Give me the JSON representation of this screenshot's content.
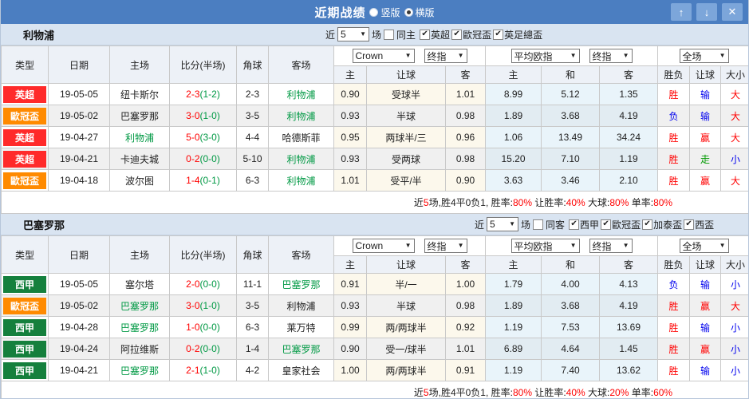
{
  "colors": {
    "red": "#ff0000",
    "blue": "#0000ee",
    "green": "#009944",
    "titlebar_blue": "#4b7ec1",
    "titlebar_button_blue": "#7ca6da",
    "section_header_bg": "#d9e4f1",
    "epl_badge": "#ff2a2a",
    "ucl_badge": "#ff8a00",
    "laliga_badge": "#15803d"
  },
  "league_colors": {
    "英超": "#ff2a2a",
    "歐冠盃": "#ff8a00",
    "西甲": "#15803d"
  },
  "titlebar": {
    "title": "近期战绩",
    "radio_vertical": "竖版",
    "radio_horizontal": "横版",
    "up_icon": "↑",
    "down_icon": "↓",
    "close_icon": "✕"
  },
  "header": {
    "col_type": "类型",
    "col_date": "日期",
    "col_home": "主场",
    "col_score": "比分(半场)",
    "col_corner": "角球",
    "col_away": "客场",
    "dd_crown": "Crown",
    "dd_final": "终指",
    "dd_euro": "平均欧指",
    "dd_final2": "终指",
    "dd_fulltime": "全场",
    "sub_crown_home": "主",
    "sub_crown_line": "让球",
    "sub_crown_away": "客",
    "sub_euro_home": "主",
    "sub_euro_draw": "和",
    "sub_euro_away": "客",
    "sub_result_wl": "胜负",
    "sub_result_line": "让球",
    "sub_result_ou": "大小"
  },
  "sections": [
    {
      "team": "利物浦",
      "near_label": "近",
      "near_value": "5",
      "games_label": "场",
      "same_label": "同主",
      "same_checked": false,
      "leagues": [
        "英超",
        "歐冠盃",
        "英足總盃"
      ],
      "rows": [
        {
          "league": "英超",
          "date": "19-05-05",
          "home": "纽卡斯尔",
          "home_highlight": false,
          "score_full": "2-3",
          "score_half": "(1-2)",
          "corner": "2-3",
          "away": "利物浦",
          "away_highlight": true,
          "crown": [
            "0.90",
            "受球半",
            "1.01"
          ],
          "euro": [
            "8.99",
            "5.12",
            "1.35"
          ],
          "results": [
            {
              "text": "胜",
              "color": "red"
            },
            {
              "text": "输",
              "color": "blue"
            },
            {
              "text": "大",
              "color": "red"
            }
          ]
        },
        {
          "league": "歐冠盃",
          "date": "19-05-02",
          "home": "巴塞罗那",
          "home_highlight": false,
          "score_full": "3-0",
          "score_half": "(1-0)",
          "corner": "3-5",
          "away": "利物浦",
          "away_highlight": true,
          "crown": [
            "0.93",
            "半球",
            "0.98"
          ],
          "euro": [
            "1.89",
            "3.68",
            "4.19"
          ],
          "results": [
            {
              "text": "负",
              "color": "blue"
            },
            {
              "text": "输",
              "color": "blue"
            },
            {
              "text": "大",
              "color": "red"
            }
          ]
        },
        {
          "league": "英超",
          "date": "19-04-27",
          "home": "利物浦",
          "home_highlight": true,
          "score_full": "5-0",
          "score_half": "(3-0)",
          "corner": "4-4",
          "away": "哈德斯菲",
          "away_highlight": false,
          "crown": [
            "0.95",
            "两球半/三",
            "0.96"
          ],
          "euro": [
            "1.06",
            "13.49",
            "34.24"
          ],
          "results": [
            {
              "text": "胜",
              "color": "red"
            },
            {
              "text": "赢",
              "color": "red"
            },
            {
              "text": "大",
              "color": "red"
            }
          ]
        },
        {
          "league": "英超",
          "date": "19-04-21",
          "home": "卡迪夫城",
          "home_highlight": false,
          "score_full": "0-2",
          "score_half": "(0-0)",
          "corner": "5-10",
          "away": "利物浦",
          "away_highlight": true,
          "crown": [
            "0.93",
            "受两球",
            "0.98"
          ],
          "euro": [
            "15.20",
            "7.10",
            "1.19"
          ],
          "results": [
            {
              "text": "胜",
              "color": "red"
            },
            {
              "text": "走",
              "color": "green"
            },
            {
              "text": "小",
              "color": "blue"
            }
          ]
        },
        {
          "league": "歐冠盃",
          "date": "19-04-18",
          "home": "波尔图",
          "home_highlight": false,
          "score_full": "1-4",
          "score_half": "(0-1)",
          "corner": "6-3",
          "away": "利物浦",
          "away_highlight": true,
          "crown": [
            "1.01",
            "受平/半",
            "0.90"
          ],
          "euro": [
            "3.63",
            "3.46",
            "2.10"
          ],
          "results": [
            {
              "text": "胜",
              "color": "red"
            },
            {
              "text": "赢",
              "color": "red"
            },
            {
              "text": "大",
              "color": "red"
            }
          ]
        }
      ],
      "summary": {
        "lead": "近",
        "count": "5",
        "body": "场,胜4平0负1, 胜率:",
        "win": "80%",
        "handicap_label": " 让胜率:",
        "handicap": "40%",
        "big_label": " 大球:",
        "big": "80%",
        "odd_label": " 单率:",
        "odd": "80%"
      }
    },
    {
      "team": "巴塞罗那",
      "near_label": "近",
      "near_value": "5",
      "games_label": "场",
      "same_label": "同客",
      "same_checked": false,
      "leagues": [
        "西甲",
        "歐冠盃",
        "加泰盃",
        "西盃"
      ],
      "rows": [
        {
          "league": "西甲",
          "date": "19-05-05",
          "home": "塞尔塔",
          "home_highlight": false,
          "score_full": "2-0",
          "score_half": "(0-0)",
          "corner": "11-1",
          "away": "巴塞罗那",
          "away_highlight": true,
          "crown": [
            "0.91",
            "半/一",
            "1.00"
          ],
          "euro": [
            "1.79",
            "4.00",
            "4.13"
          ],
          "results": [
            {
              "text": "负",
              "color": "blue"
            },
            {
              "text": "输",
              "color": "blue"
            },
            {
              "text": "小",
              "color": "blue"
            }
          ]
        },
        {
          "league": "歐冠盃",
          "date": "19-05-02",
          "home": "巴塞罗那",
          "home_highlight": true,
          "score_full": "3-0",
          "score_half": "(1-0)",
          "corner": "3-5",
          "away": "利物浦",
          "away_highlight": false,
          "crown": [
            "0.93",
            "半球",
            "0.98"
          ],
          "euro": [
            "1.89",
            "3.68",
            "4.19"
          ],
          "results": [
            {
              "text": "胜",
              "color": "red"
            },
            {
              "text": "赢",
              "color": "red"
            },
            {
              "text": "大",
              "color": "red"
            }
          ]
        },
        {
          "league": "西甲",
          "date": "19-04-28",
          "home": "巴塞罗那",
          "home_highlight": true,
          "score_full": "1-0",
          "score_half": "(0-0)",
          "corner": "6-3",
          "away": "莱万特",
          "away_highlight": false,
          "crown": [
            "0.99",
            "两/两球半",
            "0.92"
          ],
          "euro": [
            "1.19",
            "7.53",
            "13.69"
          ],
          "results": [
            {
              "text": "胜",
              "color": "red"
            },
            {
              "text": "输",
              "color": "blue"
            },
            {
              "text": "小",
              "color": "blue"
            }
          ]
        },
        {
          "league": "西甲",
          "date": "19-04-24",
          "home": "阿拉维斯",
          "home_highlight": false,
          "score_full": "0-2",
          "score_half": "(0-0)",
          "corner": "1-4",
          "away": "巴塞罗那",
          "away_highlight": true,
          "crown": [
            "0.90",
            "受一/球半",
            "1.01"
          ],
          "euro": [
            "6.89",
            "4.64",
            "1.45"
          ],
          "results": [
            {
              "text": "胜",
              "color": "red"
            },
            {
              "text": "赢",
              "color": "red"
            },
            {
              "text": "小",
              "color": "blue"
            }
          ]
        },
        {
          "league": "西甲",
          "date": "19-04-21",
          "home": "巴塞罗那",
          "home_highlight": true,
          "score_full": "2-1",
          "score_half": "(1-0)",
          "corner": "4-2",
          "away": "皇家社会",
          "away_highlight": false,
          "crown": [
            "1.00",
            "两/两球半",
            "0.91"
          ],
          "euro": [
            "1.19",
            "7.40",
            "13.62"
          ],
          "results": [
            {
              "text": "胜",
              "color": "red"
            },
            {
              "text": "输",
              "color": "blue"
            },
            {
              "text": "小",
              "color": "blue"
            }
          ]
        }
      ],
      "summary": {
        "lead": "近",
        "count": "5",
        "body": "场,胜4平0负1, 胜率:",
        "win": "80%",
        "handicap_label": " 让胜率:",
        "handicap": "40%",
        "big_label": " 大球:",
        "big": "20%",
        "odd_label": " 单率:",
        "odd": "60%"
      }
    }
  ]
}
